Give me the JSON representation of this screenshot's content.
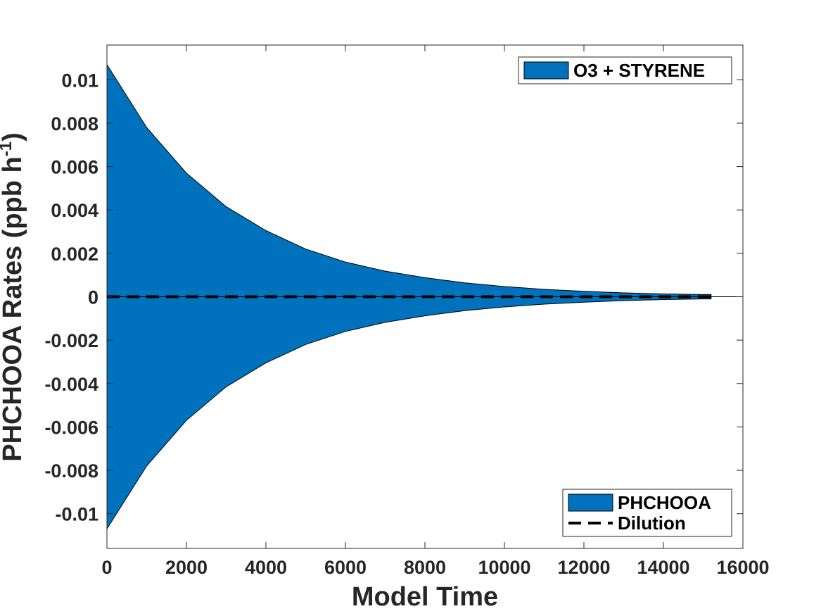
{
  "chart_data": {
    "type": "area",
    "xlabel": "Model Time",
    "ylabel": "PHCHOOA Rates (ppb h",
    "ylabel_sup": "-1",
    "ylabel_close": ")",
    "xlim": [
      0,
      16000
    ],
    "ylim": [
      -0.0116,
      0.0116
    ],
    "x_ticks": [
      0,
      2000,
      4000,
      6000,
      8000,
      10000,
      12000,
      14000,
      16000
    ],
    "x_tick_labels": [
      "0",
      "2000",
      "4000",
      "6000",
      "8000",
      "10000",
      "12000",
      "14000",
      "16000"
    ],
    "y_ticks": [
      -0.01,
      -0.008,
      -0.006,
      -0.004,
      -0.002,
      0,
      0.002,
      0.004,
      0.006,
      0.008,
      0.01
    ],
    "y_tick_labels": [
      "-0.01",
      "-0.008",
      "-0.006",
      "-0.004",
      "-0.002",
      "0",
      "0.002",
      "0.004",
      "0.006",
      "0.008",
      "0.01"
    ],
    "grid": false,
    "legends": [
      {
        "placement": "top-right",
        "entries": [
          {
            "label": "O3 + STYRENE",
            "type": "patch",
            "color": "#0072BD"
          }
        ]
      },
      {
        "placement": "bottom-right",
        "entries": [
          {
            "label": "PHCHOOA",
            "type": "patch",
            "color": "#0072BD"
          },
          {
            "label": "Dilution",
            "type": "dashed-line",
            "color": "#000000"
          }
        ]
      }
    ],
    "series": [
      {
        "name": "O3 + STYRENE",
        "kind": "positive-area",
        "color": "#0072BD",
        "x": [
          0,
          1000,
          2000,
          3000,
          4000,
          5000,
          6000,
          7000,
          8000,
          9000,
          10000,
          11000,
          12000,
          13000,
          14000,
          15000,
          15200
        ],
        "y": [
          0.0107,
          0.0078,
          0.0057,
          0.00415,
          0.00305,
          0.0022,
          0.0016,
          0.00118,
          0.00088,
          0.00064,
          0.00047,
          0.00034,
          0.00025,
          0.00018,
          0.00013,
          0.0001,
          0.0001
        ]
      },
      {
        "name": "Dilution",
        "kind": "negative-area",
        "color": "#0072BD",
        "x": [
          0,
          1000,
          2000,
          3000,
          4000,
          5000,
          6000,
          7000,
          8000,
          9000,
          10000,
          11000,
          12000,
          13000,
          14000,
          15000,
          15200
        ],
        "y": [
          -0.0107,
          -0.0078,
          -0.0057,
          -0.00415,
          -0.00305,
          -0.0022,
          -0.0016,
          -0.00118,
          -0.00088,
          -0.00064,
          -0.00047,
          -0.00034,
          -0.00025,
          -0.00018,
          -0.00013,
          -0.0001,
          -0.0001
        ]
      },
      {
        "name": "Dilution",
        "kind": "dashed-line",
        "color": "#000000",
        "x": [
          0,
          15200
        ],
        "y": [
          0,
          0
        ]
      }
    ]
  }
}
